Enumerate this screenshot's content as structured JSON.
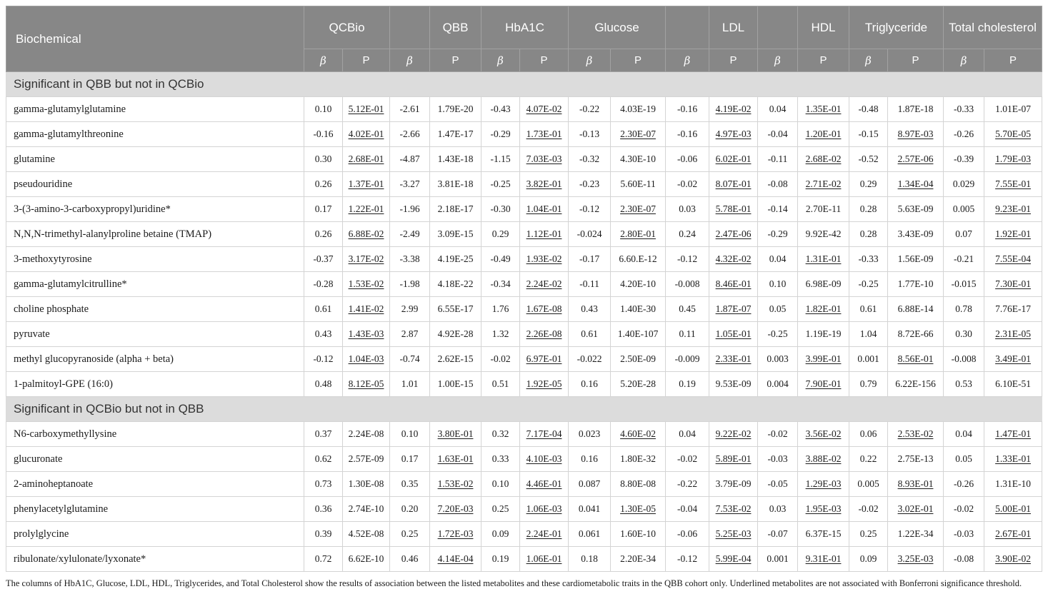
{
  "colors": {
    "header_bg": "#878787",
    "header_text": "#ffffff",
    "section_bg": "#dcdcdc",
    "border": "#d4d4d4",
    "header_border": "#a2a2a2",
    "text": "#1b1b1b"
  },
  "table": {
    "main_header": "Biochemical",
    "groups": [
      {
        "label": "QCBio",
        "span": 2
      },
      {
        "label": "",
        "span": 1
      },
      {
        "label": "QBB",
        "span": 1
      },
      {
        "label": "HbA1C",
        "span": 2
      },
      {
        "label": "Glucose",
        "span": 2
      },
      {
        "label": "",
        "span": 1
      },
      {
        "label": "LDL",
        "span": 1
      },
      {
        "label": "",
        "span": 1
      },
      {
        "label": "HDL",
        "span": 1
      },
      {
        "label": "Triglyceride",
        "span": 2
      },
      {
        "label": "Total cholesterol",
        "span": 2
      }
    ],
    "subheaders": [
      "β",
      "P",
      "β",
      "P",
      "β",
      "P",
      "β",
      "P",
      "β",
      "P",
      "β",
      "P",
      "β",
      "P",
      "β",
      "P"
    ],
    "sections": [
      {
        "title": "Significant in QBB but not in QCBio",
        "rows": [
          {
            "name": "gamma-glutamylglutamine",
            "values": [
              "0.10",
              "5.12E-01",
              "-2.61",
              "1.79E-20",
              "-0.43",
              "4.07E-02",
              "-0.22",
              "4.03E-19",
              "-0.16",
              "4.19E-02",
              "0.04",
              "1.35E-01",
              "-0.48",
              "1.87E-18",
              "-0.33",
              "1.01E-07"
            ],
            "underline": [
              1,
              5,
              9,
              11
            ]
          },
          {
            "name": "gamma-glutamylthreonine",
            "values": [
              "-0.16",
              "4.02E-01",
              "-2.66",
              "1.47E-17",
              "-0.29",
              "1.73E-01",
              "-0.13",
              "2.30E-07",
              "-0.16",
              "4.97E-03",
              "-0.04",
              "1.20E-01",
              "-0.15",
              "8.97E-03",
              "-0.26",
              "5.70E-05"
            ],
            "underline": [
              1,
              5,
              7,
              9,
              11,
              13,
              15
            ]
          },
          {
            "name": "glutamine",
            "values": [
              "0.30",
              "2.68E-01",
              "-4.87",
              "1.43E-18",
              "-1.15",
              "7.03E-03",
              "-0.32",
              "4.30E-10",
              "-0.06",
              "6.02E-01",
              "-0.11",
              "2.68E-02",
              "-0.52",
              "2.57E-06",
              "-0.39",
              "1.79E-03"
            ],
            "underline": [
              1,
              5,
              9,
              11,
              13,
              15
            ]
          },
          {
            "name": "pseudouridine",
            "values": [
              "0.26",
              "1.37E-01",
              "-3.27",
              "3.81E-18",
              "-0.25",
              "3.82E-01",
              "-0.23",
              "5.60E-11",
              "-0.02",
              "8.07E-01",
              "-0.08",
              "2.71E-02",
              "0.29",
              "1.34E-04",
              "0.029",
              "7.55E-01"
            ],
            "underline": [
              1,
              5,
              9,
              11,
              13,
              15
            ]
          },
          {
            "name": "3-(3-amino-3-carboxypropyl)uridine*",
            "values": [
              "0.17",
              "1.22E-01",
              "-1.96",
              "2.18E-17",
              "-0.30",
              "1.04E-01",
              "-0.12",
              "2.30E-07",
              "0.03",
              "5.78E-01",
              "-0.14",
              "2.70E-11",
              "0.28",
              "5.63E-09",
              "0.005",
              "9.23E-01"
            ],
            "underline": [
              1,
              5,
              7,
              9,
              15
            ]
          },
          {
            "name": "N,N,N-trimethyl-alanylproline betaine (TMAP)",
            "values": [
              "0.26",
              "6.88E-02",
              "-2.49",
              "3.09E-15",
              "0.29",
              "1.12E-01",
              "-0.024",
              "2.80E-01",
              "0.24",
              "2.47E-06",
              "-0.29",
              "9.92E-42",
              "0.28",
              "3.43E-09",
              "0.07",
              "1.92E-01"
            ],
            "underline": [
              1,
              5,
              7,
              9,
              15
            ]
          },
          {
            "name": "3-methoxytyrosine",
            "values": [
              "-0.37",
              "3.17E-02",
              "-3.38",
              "4.19E-25",
              "-0.49",
              "1.93E-02",
              "-0.17",
              "6.60.E-12",
              "-0.12",
              "4.32E-02",
              "0.04",
              "1.31E-01",
              "-0.33",
              "1.56E-09",
              "-0.21",
              "7.55E-04"
            ],
            "underline": [
              1,
              5,
              9,
              11,
              15
            ]
          },
          {
            "name": "gamma-glutamylcitrulline*",
            "values": [
              "-0.28",
              "1.53E-02",
              "-1.98",
              "4.18E-22",
              "-0.34",
              "2.24E-02",
              "-0.11",
              "4.20E-10",
              "-0.008",
              "8.46E-01",
              "0.10",
              "6.98E-09",
              "-0.25",
              "1.77E-10",
              "-0.015",
              "7.30E-01"
            ],
            "underline": [
              1,
              5,
              9,
              15
            ]
          },
          {
            "name": "choline phosphate",
            "values": [
              "0.61",
              "1.41E-02",
              "2.99",
              "6.55E-17",
              "1.76",
              "1.67E-08",
              "0.43",
              "1.40E-30",
              "0.45",
              "1.87E-07",
              "0.05",
              "1.82E-01",
              "0.61",
              "6.88E-14",
              "0.78",
              "7.76E-17"
            ],
            "underline": [
              1,
              5,
              9,
              11
            ]
          },
          {
            "name": "pyruvate",
            "values": [
              "0.43",
              "1.43E-03",
              "2.87",
              "4.92E-28",
              "1.32",
              "2.26E-08",
              "0.61",
              "1.40E-107",
              "0.11",
              "1.05E-01",
              "-0.25",
              "1.19E-19",
              "1.04",
              "8.72E-66",
              "0.30",
              "2.31E-05"
            ],
            "underline": [
              1,
              5,
              9,
              15
            ]
          },
          {
            "name": "methyl glucopyranoside (alpha + beta)",
            "values": [
              "-0.12",
              "1.04E-03",
              "-0.74",
              "2.62E-15",
              "-0.02",
              "6.97E-01",
              "-0.022",
              "2.50E-09",
              "-0.009",
              "2.33E-01",
              "0.003",
              "3.99E-01",
              "0.001",
              "8.56E-01",
              "-0.008",
              "3.49E-01"
            ],
            "underline": [
              1,
              5,
              9,
              11,
              13,
              15
            ]
          },
          {
            "name": "1-palmitoyl-GPE (16:0)",
            "values": [
              "0.48",
              "8.12E-05",
              "1.01",
              "1.00E-15",
              "0.51",
              "1.92E-05",
              "0.16",
              "5.20E-28",
              "0.19",
              "9.53E-09",
              "0.004",
              "7.90E-01",
              "0.79",
              "6.22E-156",
              "0.53",
              "6.10E-51"
            ],
            "underline": [
              1,
              5,
              11
            ]
          }
        ]
      },
      {
        "title": "Significant in QCBio but not in QBB",
        "rows": [
          {
            "name": "N6-carboxymethyllysine",
            "values": [
              "0.37",
              "2.24E-08",
              "0.10",
              "3.80E-01",
              "0.32",
              "7.17E-04",
              "0.023",
              "4.60E-02",
              "0.04",
              "9.22E-02",
              "-0.02",
              "3.56E-02",
              "0.06",
              "2.53E-02",
              "0.04",
              "1.47E-01"
            ],
            "underline": [
              3,
              5,
              7,
              9,
              11,
              13,
              15
            ]
          },
          {
            "name": "glucuronate",
            "values": [
              "0.62",
              "2.57E-09",
              "0.17",
              "1.63E-01",
              "0.33",
              "4.10E-03",
              "0.16",
              "1.80E-32",
              "-0.02",
              "5.89E-01",
              "-0.03",
              "3.88E-02",
              "0.22",
              "2.75E-13",
              "0.05",
              "1.33E-01"
            ],
            "underline": [
              3,
              5,
              9,
              11,
              15
            ]
          },
          {
            "name": "2-aminoheptanoate",
            "values": [
              "0.73",
              "1.30E-08",
              "0.35",
              "1.53E-02",
              "0.10",
              "4.46E-01",
              "0.087",
              "8.80E-08",
              "-0.22",
              "3.79E-09",
              "-0.05",
              "1.29E-03",
              "0.005",
              "8.93E-01",
              "-0.26",
              "1.31E-10"
            ],
            "underline": [
              3,
              5,
              11,
              13
            ]
          },
          {
            "name": "phenylacetylglutamine",
            "values": [
              "0.36",
              "2.74E-10",
              "0.20",
              "7.20E-03",
              "0.25",
              "1.06E-03",
              "0.041",
              "1.30E-05",
              "-0.04",
              "7.53E-02",
              "0.03",
              "1.95E-03",
              "-0.02",
              "3.02E-01",
              "-0.02",
              "5.00E-01"
            ],
            "underline": [
              3,
              5,
              7,
              9,
              11,
              13,
              15
            ]
          },
          {
            "name": "prolylglycine",
            "values": [
              "0.39",
              "4.52E-08",
              "0.25",
              "1.72E-03",
              "0.09",
              "2.24E-01",
              "0.061",
              "1.60E-10",
              "-0.06",
              "5.25E-03",
              "-0.07",
              "6.37E-15",
              "0.25",
              "1.22E-34",
              "-0.03",
              "2.67E-01"
            ],
            "underline": [
              3,
              5,
              9,
              15
            ]
          },
          {
            "name": "ribulonate/xylulonate/lyxonate*",
            "values": [
              "0.72",
              "6.62E-10",
              "0.46",
              "4.14E-04",
              "0.19",
              "1.06E-01",
              "0.18",
              "2.20E-34",
              "-0.12",
              "5.99E-04",
              "0.001",
              "9.31E-01",
              "0.09",
              "3.25E-03",
              "-0.08",
              "3.90E-02"
            ],
            "underline": [
              3,
              5,
              9,
              11,
              13,
              15
            ]
          }
        ]
      }
    ],
    "footnote": "The columns of HbA1C, Glucose, LDL, HDL, Triglycerides, and Total Cholesterol show the results of association between the listed metabolites and these cardiometabolic traits in the QBB cohort only. Underlined metabolites are not associated with Bonferroni significance threshold."
  }
}
